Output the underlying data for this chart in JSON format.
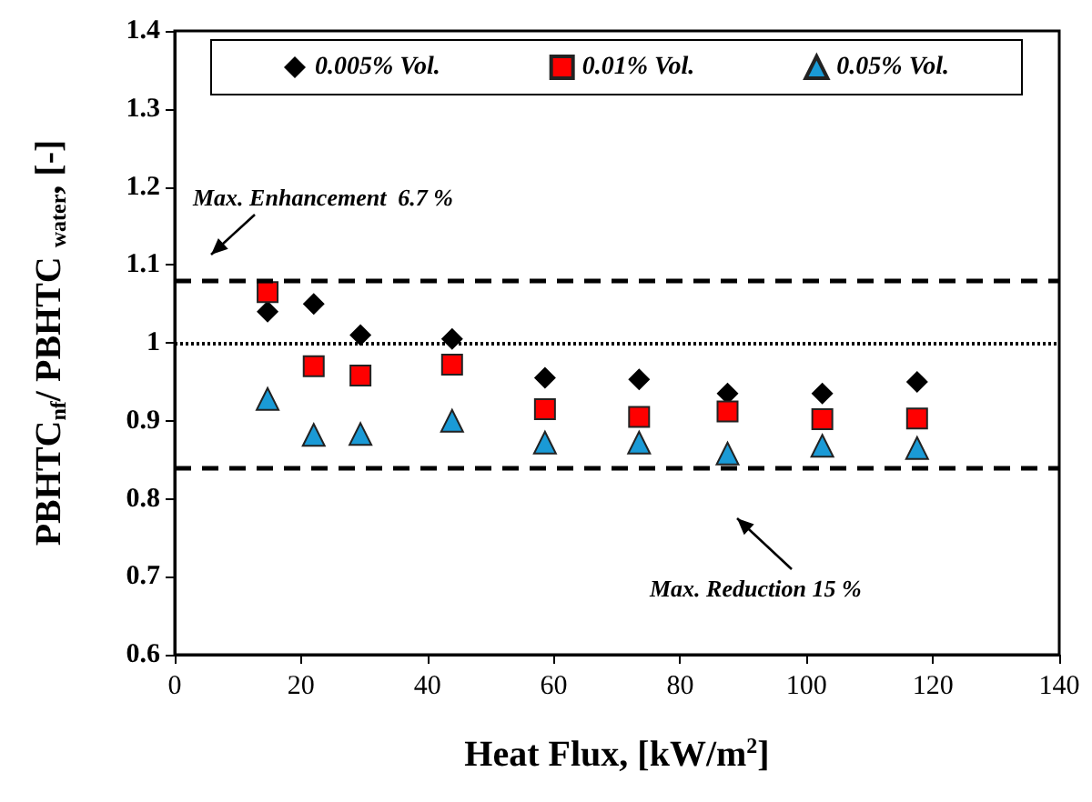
{
  "chart_data": {
    "type": "scatter",
    "xlabel": "Heat Flux, [kW/m$^{2}$]",
    "ylabel": "PBHTC$_{nf}$/ PBHTC $_{water}$, [-]",
    "x": [
      14.7,
      22,
      29.4,
      43.9,
      58.6,
      73.5,
      87.5,
      102.5,
      117.5
    ],
    "series": [
      {
        "name": "0.005% Vol.",
        "color": "#000000",
        "marker": "diamond",
        "values": [
          1.04,
          1.05,
          1.01,
          1.005,
          0.955,
          0.953,
          0.935,
          0.935,
          0.95
        ]
      },
      {
        "name": "0.01% Vol.",
        "color": "#ff0000",
        "marker": "square",
        "values": [
          1.065,
          0.97,
          0.958,
          0.972,
          0.915,
          0.905,
          0.912,
          0.902,
          0.903
        ]
      },
      {
        "name": "0.05% Vol.",
        "color": "#1a9ad6",
        "marker": "triangle",
        "values": [
          0.928,
          0.882,
          0.883,
          0.9,
          0.872,
          0.872,
          0.858,
          0.868,
          0.865
        ]
      }
    ],
    "xlim": [
      0,
      140
    ],
    "xticks": [
      0,
      20,
      40,
      60,
      80,
      100,
      120,
      140
    ],
    "ylim": [
      0.6,
      1.4
    ],
    "yticks": [
      0.6,
      0.7,
      0.8,
      0.9,
      1,
      1.1,
      1.2,
      1.3,
      1.4
    ],
    "ref_lines": [
      {
        "axis": "y",
        "value": 1.08,
        "line_style": "dashed"
      },
      {
        "axis": "y",
        "value": 1,
        "line_style": "dotted"
      },
      {
        "axis": "y",
        "value": 0.84,
        "line_style": "dashed"
      }
    ],
    "annotations": [
      "Max. Enhancement  6.7 %",
      "Max. Reduction 15 %"
    ],
    "grid": false,
    "legend": "top"
  }
}
